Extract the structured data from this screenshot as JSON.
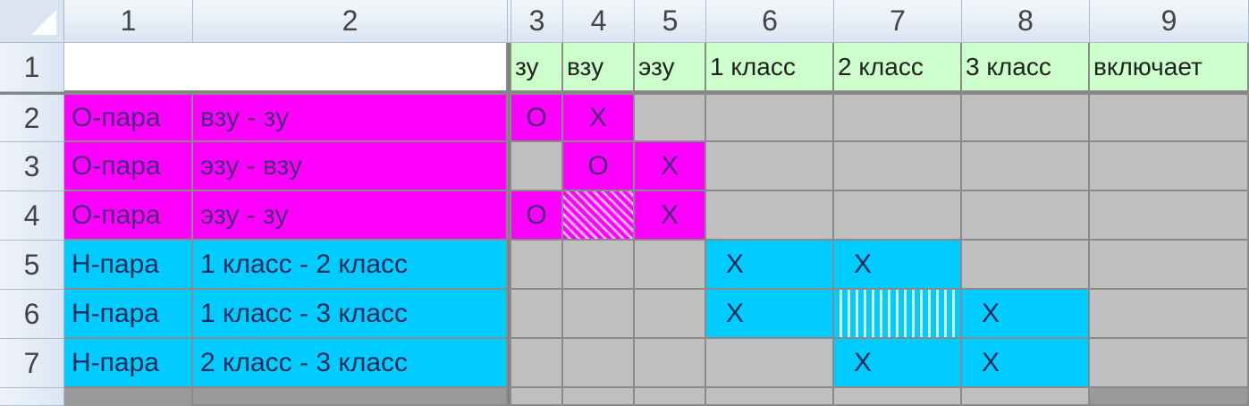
{
  "column_headers": [
    "1",
    "2",
    "3",
    "4",
    "5",
    "6",
    "7",
    "8",
    "9"
  ],
  "row_headers": [
    "1",
    "2",
    "3",
    "4",
    "5",
    "6",
    "7"
  ],
  "header_row": [
    "зу",
    "взу",
    "эзу",
    "1 класс",
    "2 класс",
    "3 класс",
    "включает"
  ],
  "rows": [
    {
      "type": "О-пара",
      "pair": "взу - зу",
      "cells": [
        "О",
        "Х",
        "",
        "",
        "",
        "",
        ""
      ]
    },
    {
      "type": "О-пара",
      "pair": "эзу - взу",
      "cells": [
        "",
        "О",
        "Х",
        "",
        "",
        "",
        ""
      ]
    },
    {
      "type": "О-пара",
      "pair": "эзу - зу",
      "cells": [
        "О",
        "",
        "Х",
        "",
        "",
        "",
        ""
      ]
    },
    {
      "type": "Н-пара",
      "pair": "1 класс - 2 класс",
      "cells": [
        "",
        "",
        "",
        "Х",
        "Х",
        "",
        ""
      ]
    },
    {
      "type": "Н-пара",
      "pair": "1 класс - 3 класс",
      "cells": [
        "",
        "",
        "",
        "Х",
        "",
        "Х",
        ""
      ]
    },
    {
      "type": "Н-пара",
      "pair": "2 класс - 3 класс",
      "cells": [
        "",
        "",
        "",
        "",
        "Х",
        "Х",
        ""
      ]
    }
  ],
  "colors": {
    "o_pair": "#ff00ff",
    "n_pair": "#00ccff",
    "header": "#ccffcc",
    "empty": "#c0c0c0"
  }
}
